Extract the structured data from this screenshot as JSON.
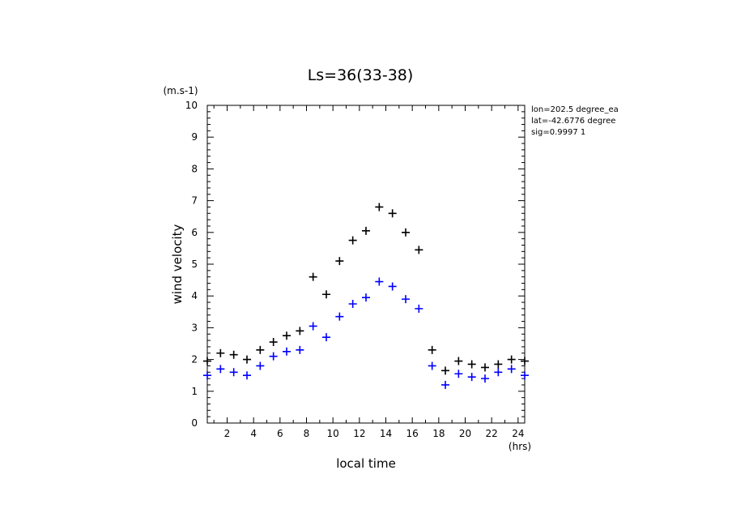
{
  "chart_data": {
    "type": "scatter",
    "title": "Ls=36(33-38)",
    "xlabel": "local time",
    "ylabel": "wind velocity",
    "x_unit": "(hrs)",
    "y_unit": "(m.s-1)",
    "xlim": [
      0.5,
      24.5
    ],
    "ylim": [
      0,
      10
    ],
    "x_ticks": [
      2,
      4,
      6,
      8,
      10,
      12,
      14,
      16,
      18,
      20,
      22,
      24
    ],
    "x_tick_labels": [
      "2",
      "4",
      "6",
      "8",
      "10",
      "12",
      "14",
      "16",
      "18",
      "20",
      "22",
      "24"
    ],
    "y_ticks": [
      0,
      1,
      2,
      3,
      4,
      5,
      6,
      7,
      8,
      9,
      10
    ],
    "y_tick_labels": [
      "0",
      "1",
      "2",
      "3",
      "4",
      "5",
      "6",
      "7",
      "8",
      "9",
      "10"
    ],
    "grid": false,
    "marker": "+",
    "annotations": [
      "lon=202.5 degree_ea",
      "lat=-42.6776 degree",
      "sig=0.9997 1"
    ],
    "series": [
      {
        "color": "#000000",
        "x": [
          0.5,
          1.5,
          2.5,
          3.5,
          4.5,
          5.5,
          6.5,
          7.5,
          8.5,
          9.5,
          10.5,
          11.5,
          12.5,
          13.5,
          14.5,
          15.5,
          16.5,
          17.5,
          18.5,
          19.5,
          20.5,
          21.5,
          22.5,
          23.5,
          24.5
        ],
        "values": [
          1.95,
          2.2,
          2.15,
          2.0,
          2.3,
          2.55,
          2.75,
          2.9,
          4.6,
          4.05,
          5.1,
          5.75,
          6.05,
          6.8,
          6.6,
          6.0,
          5.45,
          2.3,
          1.65,
          1.95,
          1.85,
          1.75,
          1.85,
          2.0,
          1.95
        ]
      },
      {
        "color": "#0000ff",
        "x": [
          0.5,
          1.5,
          2.5,
          3.5,
          4.5,
          5.5,
          6.5,
          7.5,
          8.5,
          9.5,
          10.5,
          11.5,
          12.5,
          13.5,
          14.5,
          15.5,
          16.5,
          17.5,
          18.5,
          19.5,
          20.5,
          21.5,
          22.5,
          23.5,
          24.5
        ],
        "values": [
          1.5,
          1.7,
          1.6,
          1.5,
          1.8,
          2.1,
          2.25,
          2.3,
          3.05,
          2.7,
          3.35,
          3.75,
          3.95,
          4.45,
          4.3,
          3.9,
          3.6,
          1.8,
          1.2,
          1.55,
          1.45,
          1.4,
          1.6,
          1.7,
          1.5
        ]
      }
    ]
  }
}
